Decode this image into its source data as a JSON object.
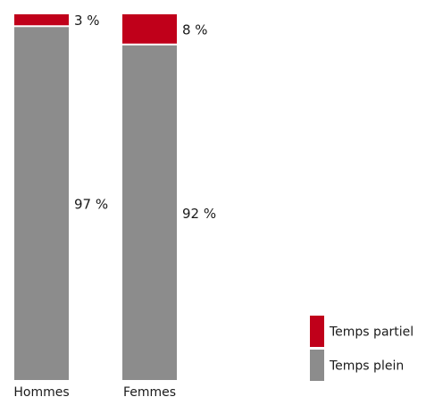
{
  "chart_data": {
    "type": "bar",
    "stacked": true,
    "categories": [
      "Hommes",
      "Femmes"
    ],
    "series": [
      {
        "name": "Temps plein",
        "values": [
          97,
          92
        ],
        "labels": [
          "97 %",
          "92 %"
        ],
        "color": "#8c8c8c"
      },
      {
        "name": "Temps partiel",
        "values": [
          3,
          8
        ],
        "labels": [
          "3 %",
          "8 %"
        ],
        "color": "#c0001a"
      }
    ],
    "ylim": [
      0,
      100
    ],
    "grid": false,
    "legend_position": "bottom-right",
    "legend_order": [
      "Temps partiel",
      "Temps plein"
    ]
  }
}
